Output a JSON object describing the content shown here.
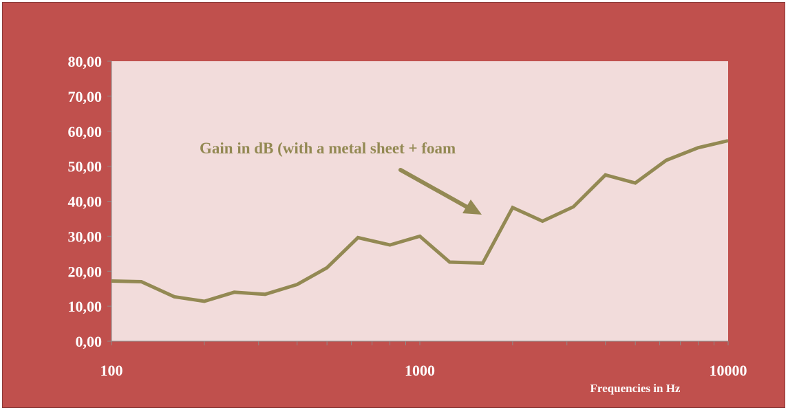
{
  "colors": {
    "frame_bg": "#c0504d",
    "plot_bg": "#f2dcdb",
    "series": "#938953",
    "text": "#ffffff"
  },
  "chart_data": {
    "type": "line",
    "title": "",
    "xlabel": "Frequencies in Hz",
    "ylabel": "",
    "xscale": "log",
    "xlim": [
      100,
      10000
    ],
    "ylim": [
      0,
      80
    ],
    "y_ticks": [
      "0,00",
      "10,00",
      "20,00",
      "30,00",
      "40,00",
      "50,00",
      "60,00",
      "70,00",
      "80,00"
    ],
    "x_ticks": [
      "100",
      "1000",
      "10000"
    ],
    "grid": false,
    "legend": "none",
    "series": [
      {
        "x": [
          100,
          125,
          160,
          200,
          250,
          315,
          400,
          500,
          630,
          800,
          1000,
          1250,
          1600,
          2000,
          2500,
          3150,
          4000,
          5000,
          6300,
          8000,
          10000
        ],
        "values": [
          17.2,
          17.0,
          12.7,
          11.4,
          14.0,
          13.4,
          16.2,
          21.0,
          29.6,
          27.5,
          30.0,
          22.6,
          22.3,
          38.2,
          34.3,
          38.4,
          47.5,
          45.2,
          51.7,
          55.3,
          57.3
        ]
      }
    ],
    "annotation": "Gain in dB (with a metal sheet + foam"
  }
}
